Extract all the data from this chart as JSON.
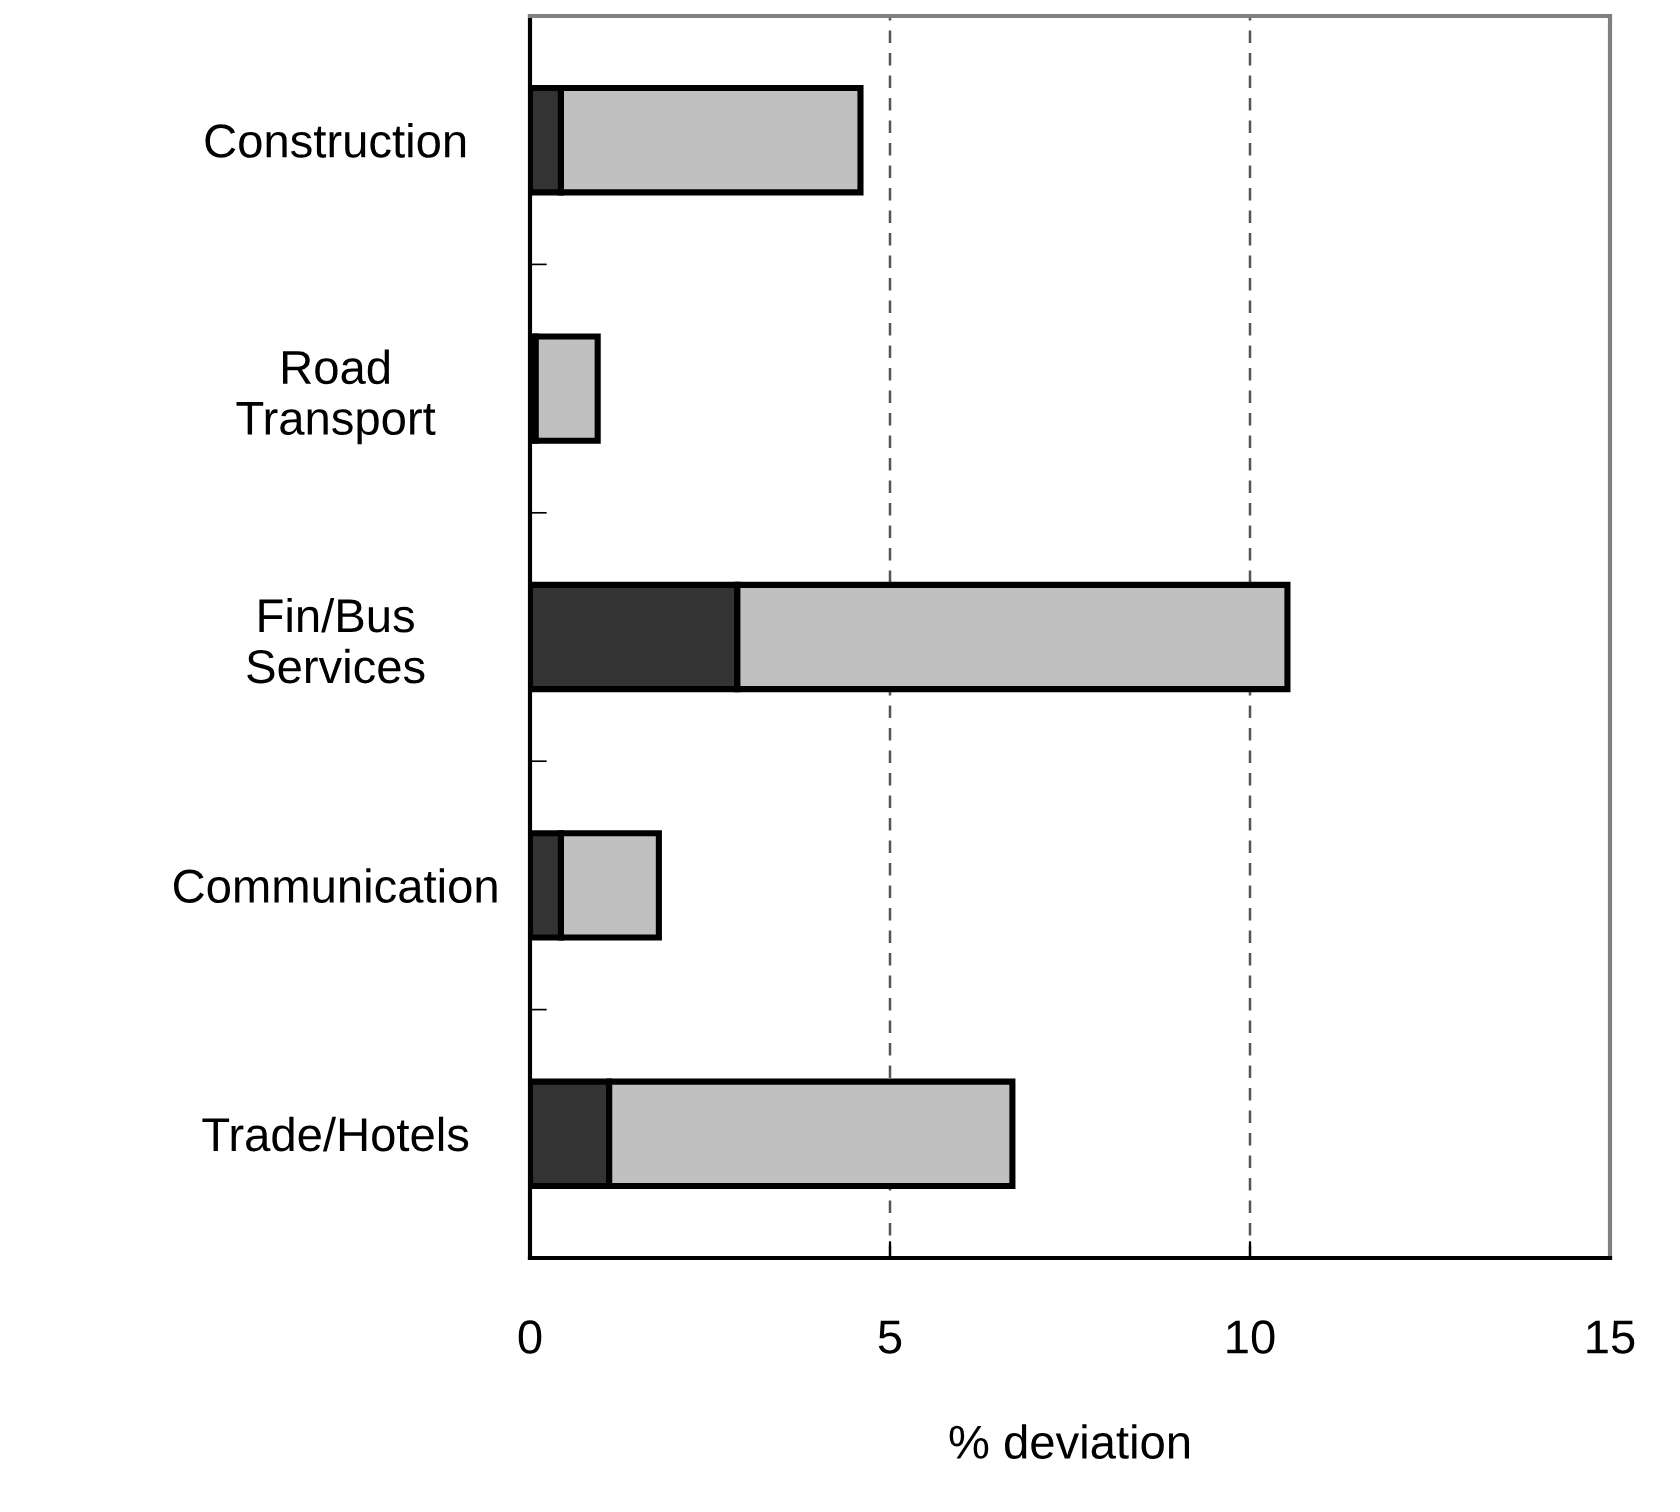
{
  "chart_data": {
    "type": "bar",
    "orientation": "horizontal",
    "stacked": true,
    "categories": [
      "Construction",
      "Road\nTransport",
      "Fin/Bus\nServices",
      "Communication",
      "Trade/Hotels"
    ],
    "series": [
      {
        "color": "#333333",
        "values": [
          0.43,
          0.08,
          2.88,
          0.43,
          1.1
        ]
      },
      {
        "color": "#c0c0c0",
        "values": [
          4.16,
          0.86,
          7.64,
          1.36,
          5.6
        ]
      }
    ],
    "xlim": [
      0,
      15
    ],
    "xticks": [
      0,
      5,
      10,
      15
    ],
    "xlabel": "% deviation",
    "grid": "x",
    "legend": false
  }
}
